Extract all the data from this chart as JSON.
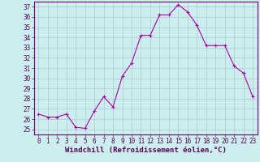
{
  "x": [
    0,
    1,
    2,
    3,
    4,
    5,
    6,
    7,
    8,
    9,
    10,
    11,
    12,
    13,
    14,
    15,
    16,
    17,
    18,
    19,
    20,
    21,
    22,
    23
  ],
  "y": [
    26.5,
    26.2,
    26.2,
    26.5,
    25.2,
    25.1,
    26.8,
    28.2,
    27.2,
    30.2,
    31.5,
    34.2,
    34.2,
    36.2,
    36.2,
    37.2,
    36.5,
    35.2,
    33.2,
    33.2,
    33.2,
    31.2,
    30.5,
    28.2
  ],
  "line_color": "#aa00aa",
  "marker_color": "#aa00aa",
  "bg_color": "#cceeee",
  "grid_color": "#aacccc",
  "xlabel": "Windchill (Refroidissement éolien,°C)",
  "xlim": [
    -0.5,
    23.5
  ],
  "ylim": [
    24.5,
    37.5
  ],
  "yticks": [
    25,
    26,
    27,
    28,
    29,
    30,
    31,
    32,
    33,
    34,
    35,
    36,
    37
  ],
  "xticks": [
    0,
    1,
    2,
    3,
    4,
    5,
    6,
    7,
    8,
    9,
    10,
    11,
    12,
    13,
    14,
    15,
    16,
    17,
    18,
    19,
    20,
    21,
    22,
    23
  ],
  "tick_fontsize": 5.5,
  "xlabel_fontsize": 6.5
}
